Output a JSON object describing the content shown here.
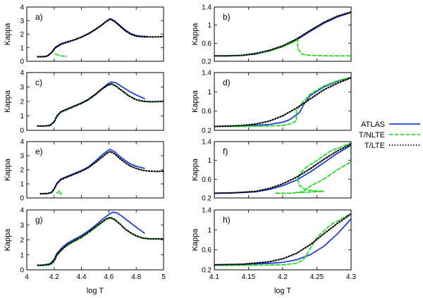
{
  "legend": {
    "placement": "right-middle",
    "entries": [
      {
        "label": "ATLAS",
        "color": "#1f3fd6",
        "style": "solid"
      },
      {
        "label": "T/NLTE",
        "color": "#22dd22",
        "style": "dashed"
      },
      {
        "label": "T/LTE",
        "color": "#000000",
        "style": "dotted"
      }
    ]
  },
  "chart_data": [
    {
      "type": "line",
      "panel_label": "a)",
      "ylabel": "Kappa",
      "xlim": [
        4,
        5
      ],
      "ylim": [
        0,
        4
      ],
      "x_ticks": [
        4,
        4.2,
        4.4,
        4.6,
        4.8,
        5
      ],
      "y_ticks": [
        0,
        1,
        2,
        3,
        4
      ],
      "x_tick_labels_shown": false,
      "series": [
        {
          "name": "ATLAS",
          "x": [
            4.08,
            4.13,
            4.15,
            4.18,
            4.21,
            4.25,
            4.3,
            4.35,
            4.4,
            4.45,
            4.5,
            4.55,
            4.58,
            4.61,
            4.64,
            4.68,
            4.72,
            4.76,
            4.8,
            4.84,
            4.88
          ],
          "y": [
            0.35,
            0.35,
            0.4,
            0.65,
            1.05,
            1.3,
            1.45,
            1.6,
            1.8,
            2.05,
            2.35,
            2.7,
            2.95,
            3.15,
            3.0,
            2.65,
            2.3,
            2.05,
            1.9,
            1.85,
            1.83
          ]
        },
        {
          "name": "T/NLTE",
          "x": [
            4.21,
            4.23,
            4.25,
            4.27,
            4.29
          ],
          "y": [
            0.55,
            0.45,
            0.4,
            0.38,
            0.36
          ]
        },
        {
          "name": "T/LTE",
          "x": [
            4.08,
            4.13,
            4.15,
            4.18,
            4.21,
            4.25,
            4.3,
            4.35,
            4.4,
            4.45,
            4.5,
            4.55,
            4.58,
            4.61,
            4.64,
            4.68,
            4.72,
            4.76,
            4.8,
            4.85,
            4.9,
            4.95,
            5.0
          ],
          "y": [
            0.33,
            0.34,
            0.38,
            0.62,
            1.0,
            1.25,
            1.42,
            1.58,
            1.78,
            2.02,
            2.32,
            2.68,
            2.93,
            3.1,
            2.95,
            2.6,
            2.25,
            2.0,
            1.85,
            1.8,
            1.8,
            1.8,
            1.82
          ]
        }
      ]
    },
    {
      "type": "line",
      "panel_label": "b)",
      "ylabel": "Kappa",
      "xlim": [
        4.1,
        4.3
      ],
      "ylim": [
        0.2,
        1.4
      ],
      "x_ticks": [
        4.1,
        4.15,
        4.2,
        4.25,
        4.3
      ],
      "y_ticks": [
        0.2,
        0.6,
        1,
        1.4
      ],
      "x_tick_labels_shown": false,
      "series": [
        {
          "name": "ATLAS",
          "x": [
            4.1,
            4.12,
            4.14,
            4.16,
            4.18,
            4.2,
            4.22,
            4.24,
            4.26,
            4.28,
            4.3
          ],
          "y": [
            0.32,
            0.32,
            0.33,
            0.36,
            0.43,
            0.53,
            0.67,
            0.86,
            1.04,
            1.18,
            1.28
          ]
        },
        {
          "name": "T/NLTE",
          "x": [
            4.1,
            4.14,
            4.18,
            4.2,
            4.215,
            4.222,
            4.222,
            4.228,
            4.24,
            4.27,
            4.3
          ],
          "y": [
            0.32,
            0.33,
            0.42,
            0.52,
            0.62,
            0.68,
            0.48,
            0.36,
            0.33,
            0.32,
            0.32
          ]
        },
        {
          "name": "T/LTE",
          "x": [
            4.1,
            4.12,
            4.14,
            4.16,
            4.18,
            4.2,
            4.22,
            4.24,
            4.26,
            4.28,
            4.3
          ],
          "y": [
            0.32,
            0.32,
            0.33,
            0.37,
            0.44,
            0.54,
            0.69,
            0.88,
            1.06,
            1.2,
            1.29
          ]
        }
      ]
    },
    {
      "type": "line",
      "panel_label": "c)",
      "ylabel": "Kappa",
      "xlim": [
        4,
        5
      ],
      "ylim": [
        0,
        4
      ],
      "x_ticks": [
        4,
        4.2,
        4.4,
        4.6,
        4.8,
        5
      ],
      "y_ticks": [
        0,
        1,
        2,
        3,
        4
      ],
      "x_tick_labels_shown": false,
      "series": [
        {
          "name": "ATLAS",
          "x": [
            4.08,
            4.13,
            4.17,
            4.2,
            4.22,
            4.25,
            4.3,
            4.35,
            4.4,
            4.45,
            4.5,
            4.55,
            4.59,
            4.62,
            4.65,
            4.7,
            4.75,
            4.8,
            4.86
          ],
          "y": [
            0.3,
            0.3,
            0.35,
            0.6,
            1.0,
            1.3,
            1.5,
            1.7,
            1.9,
            2.15,
            2.5,
            2.9,
            3.2,
            3.35,
            3.3,
            3.0,
            2.7,
            2.45,
            2.2
          ]
        },
        {
          "name": "T/NLTE",
          "x": [
            4.08,
            4.13,
            4.17,
            4.2,
            4.22,
            4.25,
            4.3,
            4.35,
            4.4,
            4.45,
            4.5,
            4.55,
            4.59,
            4.62,
            4.65,
            4.7,
            4.75,
            4.8,
            4.85,
            4.9,
            4.95,
            5.0
          ],
          "y": [
            0.28,
            0.29,
            0.32,
            0.55,
            0.95,
            1.25,
            1.45,
            1.65,
            1.85,
            2.1,
            2.45,
            2.85,
            3.1,
            3.2,
            3.05,
            2.7,
            2.35,
            2.1,
            2.0,
            1.97,
            1.98,
            2.0
          ]
        },
        {
          "name": "T/LTE",
          "x": [
            4.08,
            4.13,
            4.17,
            4.2,
            4.22,
            4.25,
            4.3,
            4.35,
            4.4,
            4.45,
            4.5,
            4.55,
            4.59,
            4.62,
            4.65,
            4.7,
            4.75,
            4.8,
            4.85,
            4.9,
            4.95,
            5.0
          ],
          "y": [
            0.3,
            0.3,
            0.34,
            0.58,
            0.98,
            1.28,
            1.48,
            1.68,
            1.88,
            2.12,
            2.47,
            2.86,
            3.12,
            3.22,
            3.08,
            2.72,
            2.37,
            2.12,
            2.02,
            1.98,
            1.99,
            2.01
          ]
        }
      ]
    },
    {
      "type": "line",
      "panel_label": "d)",
      "ylabel": "Kappa",
      "xlim": [
        4.1,
        4.3
      ],
      "ylim": [
        0.2,
        1.4
      ],
      "x_ticks": [
        4.1,
        4.15,
        4.2,
        4.25,
        4.3
      ],
      "y_ticks": [
        0.2,
        0.6,
        1,
        1.4
      ],
      "x_tick_labels_shown": false,
      "series": [
        {
          "name": "ATLAS",
          "x": [
            4.1,
            4.14,
            4.18,
            4.2,
            4.21,
            4.22,
            4.225,
            4.23,
            4.24,
            4.26,
            4.28,
            4.3
          ],
          "y": [
            0.28,
            0.29,
            0.32,
            0.37,
            0.42,
            0.52,
            0.58,
            0.72,
            0.92,
            1.1,
            1.22,
            1.3
          ]
        },
        {
          "name": "T/NLTE",
          "x": [
            4.1,
            4.15,
            4.2,
            4.21,
            4.215,
            4.22,
            4.22,
            4.225,
            4.23,
            4.24,
            4.26,
            4.28,
            4.3
          ],
          "y": [
            0.28,
            0.28,
            0.3,
            0.33,
            0.36,
            0.4,
            0.62,
            0.7,
            0.8,
            0.95,
            1.12,
            1.23,
            1.3
          ]
        },
        {
          "name": "T/LTE",
          "x": [
            4.1,
            4.14,
            4.16,
            4.18,
            4.2,
            4.22,
            4.24,
            4.26,
            4.28,
            4.3
          ],
          "y": [
            0.28,
            0.3,
            0.33,
            0.39,
            0.5,
            0.66,
            0.85,
            1.04,
            1.18,
            1.29
          ]
        }
      ]
    },
    {
      "type": "line",
      "panel_label": "e)",
      "ylabel": "Kappa",
      "xlim": [
        4,
        5
      ],
      "ylim": [
        0,
        4
      ],
      "x_ticks": [
        4,
        4.2,
        4.4,
        4.6,
        4.8,
        5
      ],
      "y_ticks": [
        0,
        1,
        2,
        3,
        4
      ],
      "x_tick_labels_shown": false,
      "series": [
        {
          "name": "ATLAS",
          "x": [
            4.1,
            4.15,
            4.18,
            4.2,
            4.22,
            4.25,
            4.3,
            4.35,
            4.4,
            4.45,
            4.5,
            4.55,
            4.59,
            4.61,
            4.64,
            4.68,
            4.72,
            4.76,
            4.8,
            4.86
          ],
          "y": [
            0.3,
            0.32,
            0.4,
            0.65,
            1.05,
            1.35,
            1.55,
            1.75,
            1.95,
            2.2,
            2.6,
            3.05,
            3.35,
            3.45,
            3.3,
            2.95,
            2.65,
            2.4,
            2.25,
            2.1
          ]
        },
        {
          "name": "T/NLTE",
          "x": [
            4.22,
            4.24,
            4.25,
            4.24,
            4.26
          ],
          "y": [
            0.35,
            0.5,
            0.35,
            0.3,
            0.28
          ]
        },
        {
          "name": "T/LTE",
          "x": [
            4.1,
            4.15,
            4.18,
            4.2,
            4.22,
            4.25,
            4.3,
            4.35,
            4.4,
            4.45,
            4.5,
            4.55,
            4.59,
            4.61,
            4.64,
            4.68,
            4.72,
            4.76,
            4.8,
            4.85,
            4.9,
            4.95,
            5.0
          ],
          "y": [
            0.3,
            0.31,
            0.38,
            0.62,
            1.0,
            1.3,
            1.5,
            1.7,
            1.9,
            2.15,
            2.5,
            2.9,
            3.2,
            3.3,
            3.15,
            2.8,
            2.5,
            2.25,
            2.1,
            1.95,
            1.9,
            1.88,
            1.9
          ]
        }
      ]
    },
    {
      "type": "line",
      "panel_label": "f)",
      "ylabel": "Kappa",
      "xlim": [
        4.1,
        4.3
      ],
      "ylim": [
        0.2,
        1.4
      ],
      "x_ticks": [
        4.1,
        4.15,
        4.2,
        4.25,
        4.3
      ],
      "y_ticks": [
        0.2,
        0.6,
        1,
        1.4
      ],
      "x_tick_labels_shown": false,
      "series": [
        {
          "name": "ATLAS",
          "x": [
            4.1,
            4.13,
            4.16,
            4.18,
            4.2,
            4.22,
            4.24,
            4.26,
            4.28,
            4.3
          ],
          "y": [
            0.3,
            0.31,
            0.33,
            0.38,
            0.46,
            0.58,
            0.75,
            0.95,
            1.15,
            1.32
          ]
        },
        {
          "name": "T/NLTE",
          "x": [
            4.19,
            4.21,
            4.225,
            4.232,
            4.24,
            4.26,
            4.28,
            4.3,
            4.3,
            4.27,
            4.25,
            4.235,
            4.225,
            4.222,
            4.224,
            4.23,
            4.24,
            4.25,
            4.26,
            4.245,
            4.23,
            4.22
          ],
          "y": [
            0.3,
            0.3,
            0.32,
            0.36,
            0.45,
            0.6,
            0.8,
            0.97,
            1.37,
            1.2,
            1.0,
            0.86,
            0.72,
            0.6,
            0.48,
            0.4,
            0.36,
            0.35,
            0.34,
            0.33,
            0.32,
            0.32
          ]
        },
        {
          "name": "T/LTE",
          "x": [
            4.1,
            4.13,
            4.16,
            4.18,
            4.2,
            4.22,
            4.24,
            4.26,
            4.28,
            4.3
          ],
          "y": [
            0.3,
            0.31,
            0.34,
            0.4,
            0.5,
            0.64,
            0.82,
            1.02,
            1.2,
            1.35
          ]
        }
      ]
    },
    {
      "type": "line",
      "panel_label": "g)",
      "ylabel": "Kappa",
      "xlabel": "log T",
      "xlim": [
        4,
        5
      ],
      "ylim": [
        0,
        4
      ],
      "x_ticks": [
        4,
        4.2,
        4.4,
        4.6,
        4.8,
        5
      ],
      "y_ticks": [
        0,
        1,
        2,
        3,
        4
      ],
      "x_tick_labels_shown": true,
      "series": [
        {
          "name": "ATLAS",
          "x": [
            4.08,
            4.12,
            4.17,
            4.2,
            4.22,
            4.26,
            4.3,
            4.35,
            4.4,
            4.45,
            4.5,
            4.55,
            4.6,
            4.63,
            4.66,
            4.7,
            4.75,
            4.8,
            4.86
          ],
          "y": [
            0.3,
            0.32,
            0.4,
            0.7,
            1.1,
            1.5,
            1.8,
            2.05,
            2.3,
            2.6,
            2.95,
            3.35,
            3.7,
            3.85,
            3.8,
            3.55,
            3.2,
            2.85,
            2.45
          ]
        },
        {
          "name": "T/NLTE",
          "x": [
            4.1,
            4.15,
            4.18,
            4.2,
            4.22,
            4.26,
            4.3,
            4.35,
            4.4,
            4.45,
            4.5,
            4.55,
            4.58,
            4.61,
            4.64,
            4.68,
            4.72,
            4.76,
            4.8,
            4.85,
            4.9,
            4.95,
            5.0
          ],
          "y": [
            0.28,
            0.3,
            0.35,
            0.55,
            0.95,
            1.35,
            1.65,
            1.9,
            2.15,
            2.45,
            2.8,
            3.15,
            3.35,
            3.45,
            3.35,
            3.05,
            2.7,
            2.45,
            2.25,
            2.1,
            2.05,
            2.05,
            2.07
          ]
        },
        {
          "name": "T/LTE",
          "x": [
            4.08,
            4.12,
            4.17,
            4.2,
            4.22,
            4.26,
            4.3,
            4.35,
            4.4,
            4.45,
            4.5,
            4.55,
            4.58,
            4.61,
            4.64,
            4.68,
            4.72,
            4.76,
            4.8,
            4.85,
            4.9,
            4.95,
            5.0
          ],
          "y": [
            0.3,
            0.31,
            0.38,
            0.6,
            1.0,
            1.4,
            1.7,
            1.95,
            2.2,
            2.5,
            2.85,
            3.2,
            3.4,
            3.5,
            3.38,
            3.08,
            2.72,
            2.47,
            2.27,
            2.12,
            2.07,
            2.07,
            2.08
          ]
        }
      ]
    },
    {
      "type": "line",
      "panel_label": "h)",
      "ylabel": "Kappa",
      "xlabel": "log T",
      "xlim": [
        4.1,
        4.3
      ],
      "ylim": [
        0.2,
        1.4
      ],
      "x_ticks": [
        4.1,
        4.15,
        4.2,
        4.25,
        4.3
      ],
      "y_ticks": [
        0.2,
        0.6,
        1,
        1.4
      ],
      "x_tick_labels_shown": true,
      "series": [
        {
          "name": "ATLAS",
          "x": [
            4.1,
            4.14,
            4.18,
            4.2,
            4.22,
            4.24,
            4.26,
            4.28,
            4.3
          ],
          "y": [
            0.3,
            0.31,
            0.33,
            0.35,
            0.4,
            0.5,
            0.67,
            0.92,
            1.22
          ]
        },
        {
          "name": "T/NLTE",
          "x": [
            4.1,
            4.15,
            4.2,
            4.22,
            4.23,
            4.235,
            4.24,
            4.25,
            4.27,
            4.3
          ],
          "y": [
            0.29,
            0.29,
            0.3,
            0.33,
            0.4,
            0.5,
            0.62,
            0.85,
            1.1,
            1.33
          ]
        },
        {
          "name": "T/LTE",
          "x": [
            4.1,
            4.14,
            4.18,
            4.2,
            4.22,
            4.24,
            4.26,
            4.28,
            4.3
          ],
          "y": [
            0.3,
            0.31,
            0.36,
            0.42,
            0.53,
            0.7,
            0.92,
            1.13,
            1.32
          ]
        }
      ]
    }
  ]
}
